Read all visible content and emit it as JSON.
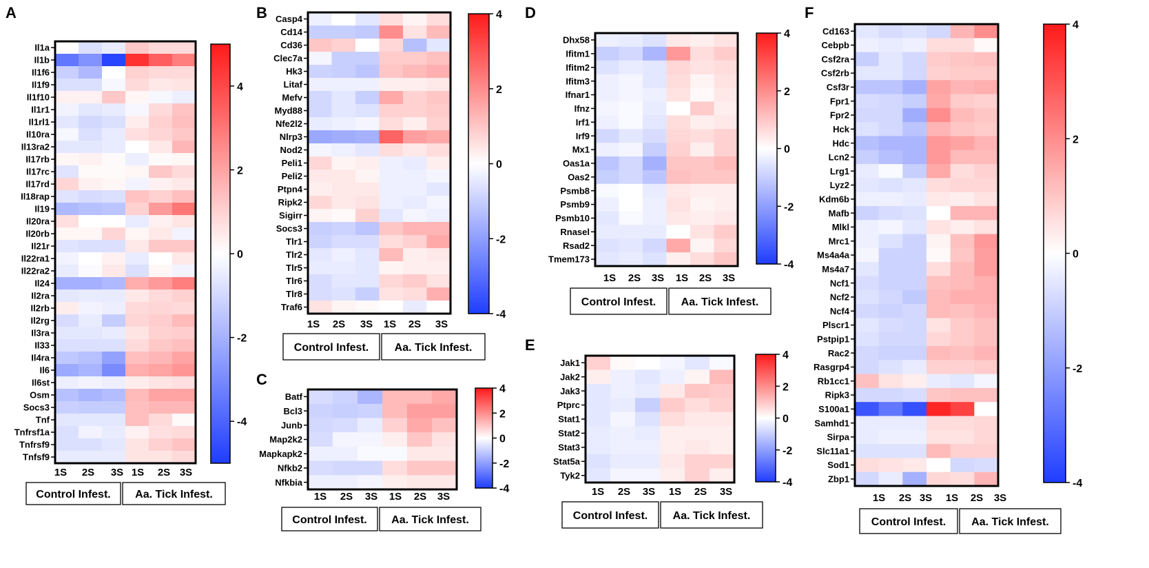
{
  "colorscale": {
    "low": "#1f3dff",
    "mid": "#ffffff",
    "high": "#ff1a1a"
  },
  "shared": {
    "columns": [
      "1S",
      "2S",
      "3S",
      "1S",
      "2S",
      "3S"
    ],
    "groups": [
      "Control Infest.",
      "Aa. Tick Infest."
    ]
  },
  "chart_data": [
    {
      "panel": "A",
      "type": "heatmap",
      "range": [
        -5,
        5
      ],
      "colorbar_ticks": [
        4,
        2,
        0,
        -2,
        -4
      ],
      "rows": [
        "Il1a",
        "Il1b",
        "Il1f6",
        "Il1f9",
        "Il1f10",
        "Il1r1",
        "Il1rl1",
        "Il10ra",
        "Il13ra2",
        "Il17rb",
        "Il17rc",
        "Il17rd",
        "Il18rap",
        "Il19",
        "Il20ra",
        "Il20rb",
        "Il21r",
        "Il22ra1",
        "Il22ra2",
        "Il24",
        "Il2ra",
        "Il2rb",
        "Il2rg",
        "Il3ra",
        "Il33",
        "Il4ra",
        "Il6",
        "Il6st",
        "Osm",
        "Socs3",
        "Tnf",
        "Tnfrsf1a",
        "Tnfrsf9",
        "Tnfsf9"
      ],
      "values": [
        [
          0,
          -0.8,
          -0.5,
          1.2,
          0.8,
          0.8
        ],
        [
          -3.5,
          -2.8,
          -4.8,
          4.5,
          3.5,
          2.8
        ],
        [
          -1.2,
          -1.8,
          0,
          1,
          0.8,
          0.8
        ],
        [
          -0.8,
          -0.8,
          -0.2,
          0.8,
          0.5,
          0.6
        ],
        [
          0.3,
          0.3,
          1.2,
          0.2,
          -0.2,
          -0.4
        ],
        [
          -0.3,
          -0.6,
          -0.5,
          -0.2,
          0.8,
          1.3
        ],
        [
          -0.6,
          -1,
          -0.8,
          0.4,
          1,
          1.4
        ],
        [
          -0.2,
          -0.8,
          -0.5,
          0.7,
          0.9,
          1.2
        ],
        [
          -0.6,
          -0.6,
          -0.5,
          0,
          0.5,
          1.6
        ],
        [
          0.2,
          0.3,
          0.1,
          -0.4,
          0.1,
          0.2
        ],
        [
          -0.7,
          0.1,
          0.1,
          0.2,
          1.2,
          0.8
        ],
        [
          0.9,
          0.3,
          0.2,
          -0.3,
          0.3,
          0.5
        ],
        [
          -0.7,
          -0.9,
          -0.8,
          1.3,
          1,
          1.4
        ],
        [
          -1.8,
          -1.6,
          -1.5,
          1,
          2.2,
          3
        ],
        [
          0.7,
          0,
          0,
          -0.5,
          0.3,
          0.6
        ],
        [
          0.2,
          0.2,
          0.9,
          0.2,
          0.5,
          -0.3
        ],
        [
          -0.7,
          -0.8,
          -0.8,
          0.5,
          1.2,
          1.2
        ],
        [
          -0.3,
          0,
          0.3,
          -0.5,
          0,
          0.5
        ],
        [
          -0.5,
          -0.1,
          0.5,
          -0.8,
          0.2,
          -0.3
        ],
        [
          -2,
          -2,
          -1.8,
          1.8,
          2.2,
          2.8
        ],
        [
          -0.6,
          -0.5,
          -0.5,
          0.5,
          0.8,
          1
        ],
        [
          0.4,
          -0.3,
          -0.4,
          0.8,
          0.9,
          0.8
        ],
        [
          -0.9,
          -0.5,
          -1.3,
          0.9,
          1.1,
          1.5
        ],
        [
          -0.6,
          -0.6,
          -0.5,
          0.6,
          1,
          1.1
        ],
        [
          -0.8,
          -0.8,
          -0.8,
          0.8,
          1.2,
          1.4
        ],
        [
          -1.4,
          -1.6,
          -2.4,
          1.4,
          1.6,
          2
        ],
        [
          -2.2,
          -1.9,
          -3,
          1.8,
          2,
          2.3
        ],
        [
          -0.4,
          -0.3,
          -0.4,
          0.4,
          0.6,
          0.7
        ],
        [
          -1.6,
          -1.9,
          -1.7,
          1.5,
          2,
          2
        ],
        [
          -1.2,
          -1.3,
          -1.3,
          1.4,
          1.6,
          1.6
        ],
        [
          -0.6,
          -0.6,
          -0.6,
          1.4,
          0.8,
          0.1
        ],
        [
          -0.8,
          -0.3,
          -0.5,
          0.3,
          0.7,
          0.8
        ],
        [
          -0.8,
          -0.8,
          -0.6,
          0.6,
          1,
          1.3
        ],
        [
          -0.5,
          -0.5,
          -0.5,
          0.6,
          0.6,
          0.8
        ]
      ]
    },
    {
      "panel": "B",
      "type": "heatmap",
      "range": [
        -4,
        4
      ],
      "colorbar_ticks": [
        4,
        2,
        0,
        -2,
        -4
      ],
      "rows": [
        "Casp4",
        "Cd14",
        "Cd36",
        "Clec7a",
        "Hk3",
        "Litaf",
        "Mefv",
        "Myd88",
        "Nfe2l2",
        "Nlrp3",
        "Nod2",
        "Peli1",
        "Peli2",
        "Ptpn4",
        "Ripk2",
        "Sigirr",
        "Socs3",
        "Tlr1",
        "Tlr2",
        "Tlr5",
        "Tlr6",
        "Tlr8",
        "Traf6"
      ],
      "values": [
        [
          -0.3,
          0,
          -0.5,
          0.6,
          0.2,
          0.6
        ],
        [
          -1,
          -1,
          -1.1,
          2,
          0.5,
          1.2
        ],
        [
          1,
          0.8,
          0,
          0.7,
          -1.3,
          -0.5
        ],
        [
          -0.2,
          -1,
          -1,
          0.9,
          0.9,
          1.1
        ],
        [
          -0.9,
          -1,
          -1.2,
          1,
          1.2,
          1.4
        ],
        [
          -0.3,
          -0.3,
          -0.3,
          0.3,
          0.3,
          0.4
        ],
        [
          -0.8,
          -0.5,
          -1,
          1.5,
          0.8,
          1
        ],
        [
          -0.8,
          -0.5,
          -0.6,
          0.8,
          0.8,
          0.9
        ],
        [
          -0.4,
          -0.3,
          -0.2,
          0.6,
          0.3,
          0.8
        ],
        [
          -1.8,
          -1.7,
          -1.6,
          2.7,
          1.7,
          1.5
        ],
        [
          -0.2,
          -0.3,
          -0.5,
          0.6,
          0.4,
          0.6
        ],
        [
          0.7,
          0.2,
          0.3,
          -0.3,
          -0.4,
          0.3
        ],
        [
          0.4,
          0.4,
          0.2,
          -0.3,
          -0.3,
          -0.2
        ],
        [
          0.3,
          0.4,
          0.4,
          -0.3,
          -0.3,
          -0.5
        ],
        [
          0.7,
          0.4,
          0.5,
          -0.3,
          -0.4,
          -0.2
        ],
        [
          0.2,
          0.1,
          0.8,
          -0.5,
          -0.2,
          -0.3
        ],
        [
          -1,
          -0.9,
          -1.2,
          1,
          1.3,
          1.3
        ],
        [
          -0.9,
          -0.7,
          -0.7,
          0.6,
          0.8,
          1.5
        ],
        [
          -0.5,
          -0.3,
          -0.5,
          1.2,
          0.3,
          0.4
        ],
        [
          -0.4,
          -0.4,
          -0.5,
          0.2,
          0.3,
          0.3
        ],
        [
          -0.7,
          -0.5,
          -0.5,
          0.7,
          0.9,
          0.5
        ],
        [
          -0.7,
          -0.6,
          -1,
          0.5,
          0.6,
          1.4
        ],
        [
          0.5,
          0.2,
          0.1,
          0,
          -0.4,
          0
        ]
      ]
    },
    {
      "panel": "C",
      "type": "heatmap",
      "range": [
        -4,
        4
      ],
      "colorbar_ticks": [
        4,
        2,
        0,
        -2,
        -4
      ],
      "rows": [
        "Batf",
        "Bcl3",
        "Junb",
        "Map2k2",
        "Mapkapk2",
        "Nfkb2",
        "Nfkbia"
      ],
      "values": [
        [
          -0.7,
          -0.9,
          -1.5,
          1.2,
          1.2,
          1.5
        ],
        [
          -0.9,
          -1,
          -0.9,
          1.2,
          1.7,
          1.7
        ],
        [
          -0.8,
          -0.7,
          -0.4,
          0.8,
          1.5,
          1.1
        ],
        [
          -0.7,
          -0.2,
          -0.2,
          0.3,
          1,
          0.5
        ],
        [
          -0.3,
          -0.3,
          -0.1,
          -0.1,
          0.4,
          0.4
        ],
        [
          -0.7,
          -0.8,
          -0.8,
          0.6,
          1,
          1
        ],
        [
          -0.3,
          -0.3,
          -0.2,
          0.3,
          0.4,
          0.4
        ]
      ]
    },
    {
      "panel": "D",
      "type": "heatmap",
      "range": [
        -4,
        4
      ],
      "colorbar_ticks": [
        4,
        2,
        0,
        -2,
        -4
      ],
      "rows": [
        "Dhx58",
        "Ifitm1",
        "Ifitm2",
        "Ifitm3",
        "Ifnar1",
        "Ifnz",
        "Irf1",
        "Irf9",
        "Mx1",
        "Oas1a",
        "Oas2",
        "Psmb8",
        "Psmb9",
        "Psmb10",
        "Rnasel",
        "Rsad2",
        "Tmem173"
      ],
      "values": [
        [
          -0.3,
          -0.4,
          -0.6,
          0.4,
          0.3,
          0.5
        ],
        [
          -1,
          -0.8,
          -1.5,
          1.8,
          0.6,
          0.9
        ],
        [
          -0.6,
          -0.4,
          -0.5,
          0.7,
          0.5,
          0.6
        ],
        [
          -0.3,
          -0.2,
          -0.5,
          0.6,
          0.2,
          0.5
        ],
        [
          -0.3,
          -0.2,
          -0.3,
          0.5,
          0.1,
          0.4
        ],
        [
          -0.2,
          -0.1,
          -0.4,
          0,
          0.9,
          0.3
        ],
        [
          -0.3,
          -0.1,
          -0.5,
          0.6,
          0.3,
          0.4
        ],
        [
          -0.8,
          -0.5,
          -0.7,
          0.7,
          0.6,
          0.8
        ],
        [
          -0.3,
          -0.2,
          -1,
          0.8,
          0.3,
          0.8
        ],
        [
          -1.2,
          -0.8,
          -1.6,
          1,
          1,
          1.2
        ],
        [
          -1,
          -0.8,
          -1.2,
          1.1,
          1,
          1
        ],
        [
          -0.1,
          0,
          -0.4,
          0.4,
          0.3,
          0.3
        ],
        [
          -0.3,
          0,
          -0.3,
          0.5,
          0.2,
          0.3
        ],
        [
          -0.5,
          -0.1,
          -0.3,
          0.4,
          0.3,
          0.4
        ],
        [
          -0.4,
          -0.4,
          -0.4,
          0,
          0.5,
          0.9
        ],
        [
          -0.6,
          -0.5,
          -0.8,
          1.5,
          0.2,
          0.7
        ],
        [
          -0.5,
          -0.4,
          -0.6,
          0.3,
          0.6,
          1
        ]
      ]
    },
    {
      "panel": "E",
      "type": "heatmap",
      "range": [
        -4,
        4
      ],
      "colorbar_ticks": [
        4,
        2,
        0,
        -2,
        -4
      ],
      "rows": [
        "Jak1",
        "Jak2",
        "Jak3",
        "Ptprc",
        "Stat1",
        "Stat2",
        "Stat3",
        "Stat5a",
        "Tyk2"
      ],
      "values": [
        [
          0.8,
          0.1,
          0,
          -0.2,
          -0.5,
          -0.1
        ],
        [
          0.3,
          -0.3,
          -0.5,
          -0.3,
          0.2,
          1.2
        ],
        [
          -0.5,
          -0.3,
          -0.4,
          0.4,
          1,
          0.9
        ],
        [
          -0.5,
          -0.4,
          -1,
          0.9,
          0.6,
          0.8
        ],
        [
          -0.5,
          -0.2,
          -0.6,
          0.6,
          0.4,
          0.4
        ],
        [
          -0.4,
          -0.3,
          -0.4,
          0.3,
          0.3,
          0.3
        ],
        [
          -0.4,
          -0.3,
          -0.3,
          0.3,
          0.4,
          0.3
        ],
        [
          -0.6,
          -0.4,
          -0.4,
          0.4,
          0.8,
          0.8
        ],
        [
          -0.5,
          -0.2,
          -0.2,
          0.3,
          0.8,
          0.3
        ]
      ]
    },
    {
      "panel": "F",
      "type": "heatmap",
      "range": [
        -4,
        4
      ],
      "colorbar_ticks": [
        4,
        2,
        0,
        -2,
        -4
      ],
      "rows": [
        "Cd163",
        "Cebpb",
        "Csf2ra",
        "Csf2rb",
        "Csf3r",
        "Fpr1",
        "Fpr2",
        "Hck",
        "Hdc",
        "Lcn2",
        "Lrg1",
        "Lyz2",
        "Kdm6b",
        "Mafb",
        "Mlkl",
        "Mrc1",
        "Ms4a4a",
        "Ms4a7",
        "Ncf1",
        "Ncf2",
        "Ncf4",
        "Plscr1",
        "Pstpip1",
        "Rac2",
        "Rasgrp4",
        "Rb1cc1",
        "Ripk3",
        "S100a1",
        "Samhd1",
        "Sirpa",
        "Slc11a1",
        "Sod1",
        "Zbp1"
      ],
      "values": [
        [
          -0.5,
          -0.7,
          -0.6,
          -0.8,
          1.3,
          2
        ],
        [
          -0.3,
          -0.4,
          -0.3,
          0.6,
          0.6,
          0.1
        ],
        [
          -1,
          -0.5,
          -0.8,
          0.9,
          1,
          1.1
        ],
        [
          -0.5,
          -0.5,
          -0.8,
          0.8,
          0.9,
          0.9
        ],
        [
          -1.2,
          -1.2,
          -1.6,
          1.6,
          1.3,
          1.4
        ],
        [
          -0.7,
          -0.8,
          -1,
          1.5,
          0.9,
          0.8
        ],
        [
          -0.8,
          -0.8,
          -1.7,
          2,
          1.2,
          1
        ],
        [
          -0.6,
          -0.8,
          -1.2,
          1.3,
          1,
          0.9
        ],
        [
          -1.3,
          -1.5,
          -1.5,
          1.8,
          1.6,
          1.3
        ],
        [
          -1,
          -1.3,
          -1.5,
          1.8,
          1.2,
          1.2
        ],
        [
          -0.4,
          -0.1,
          -1,
          1.5,
          0.6,
          0.8
        ],
        [
          -0.5,
          -0.6,
          -0.5,
          0.6,
          0.7,
          0.7
        ],
        [
          -0.3,
          -0.3,
          -0.4,
          0.4,
          0.3,
          0.5
        ],
        [
          -0.9,
          -0.7,
          -0.6,
          0,
          1.3,
          1.3
        ],
        [
          -0.3,
          -0.2,
          -0.5,
          0.5,
          0.3,
          0.5
        ],
        [
          -0.3,
          -0.6,
          -0.9,
          0.2,
          1.1,
          1.8
        ],
        [
          -0.2,
          -0.9,
          -0.9,
          0.1,
          1,
          1.7
        ],
        [
          -0.5,
          -0.9,
          -0.9,
          0.6,
          1.2,
          1.7
        ],
        [
          -0.7,
          -0.9,
          -0.9,
          1.1,
          1.2,
          1.4
        ],
        [
          -0.6,
          -0.8,
          -1.1,
          1.2,
          1.4,
          1.4
        ],
        [
          -0.8,
          -0.9,
          -0.8,
          1.2,
          1.1,
          1.3
        ],
        [
          -0.5,
          -0.7,
          -0.8,
          0.5,
          0.9,
          1.1
        ],
        [
          -0.6,
          -0.8,
          -0.8,
          0.7,
          0.9,
          1.1
        ],
        [
          -0.8,
          -0.9,
          -0.9,
          1.2,
          1.1,
          1.3
        ],
        [
          -0.8,
          -0.6,
          -0.4,
          0.8,
          0.8,
          0.9
        ],
        [
          1.1,
          0.5,
          0.3,
          -0.4,
          -0.5,
          -0.2
        ],
        [
          -0.8,
          -0.8,
          -0.7,
          1,
          1.1,
          1.1
        ],
        [
          -3.5,
          -2.8,
          -3.6,
          3.8,
          3.3,
          0
        ],
        [
          -0.4,
          -0.4,
          -0.4,
          0.6,
          0.6,
          0.7
        ],
        [
          -0.4,
          -0.3,
          -0.3,
          0.5,
          0.5,
          0.7
        ],
        [
          -0.6,
          -0.6,
          -0.6,
          1.2,
          0.8,
          0.8
        ],
        [
          0.6,
          0.5,
          0.4,
          0,
          -0.8,
          -0.7
        ],
        [
          -0.8,
          -0.4,
          -1.6,
          0.7,
          0.6,
          1.3
        ]
      ]
    }
  ]
}
